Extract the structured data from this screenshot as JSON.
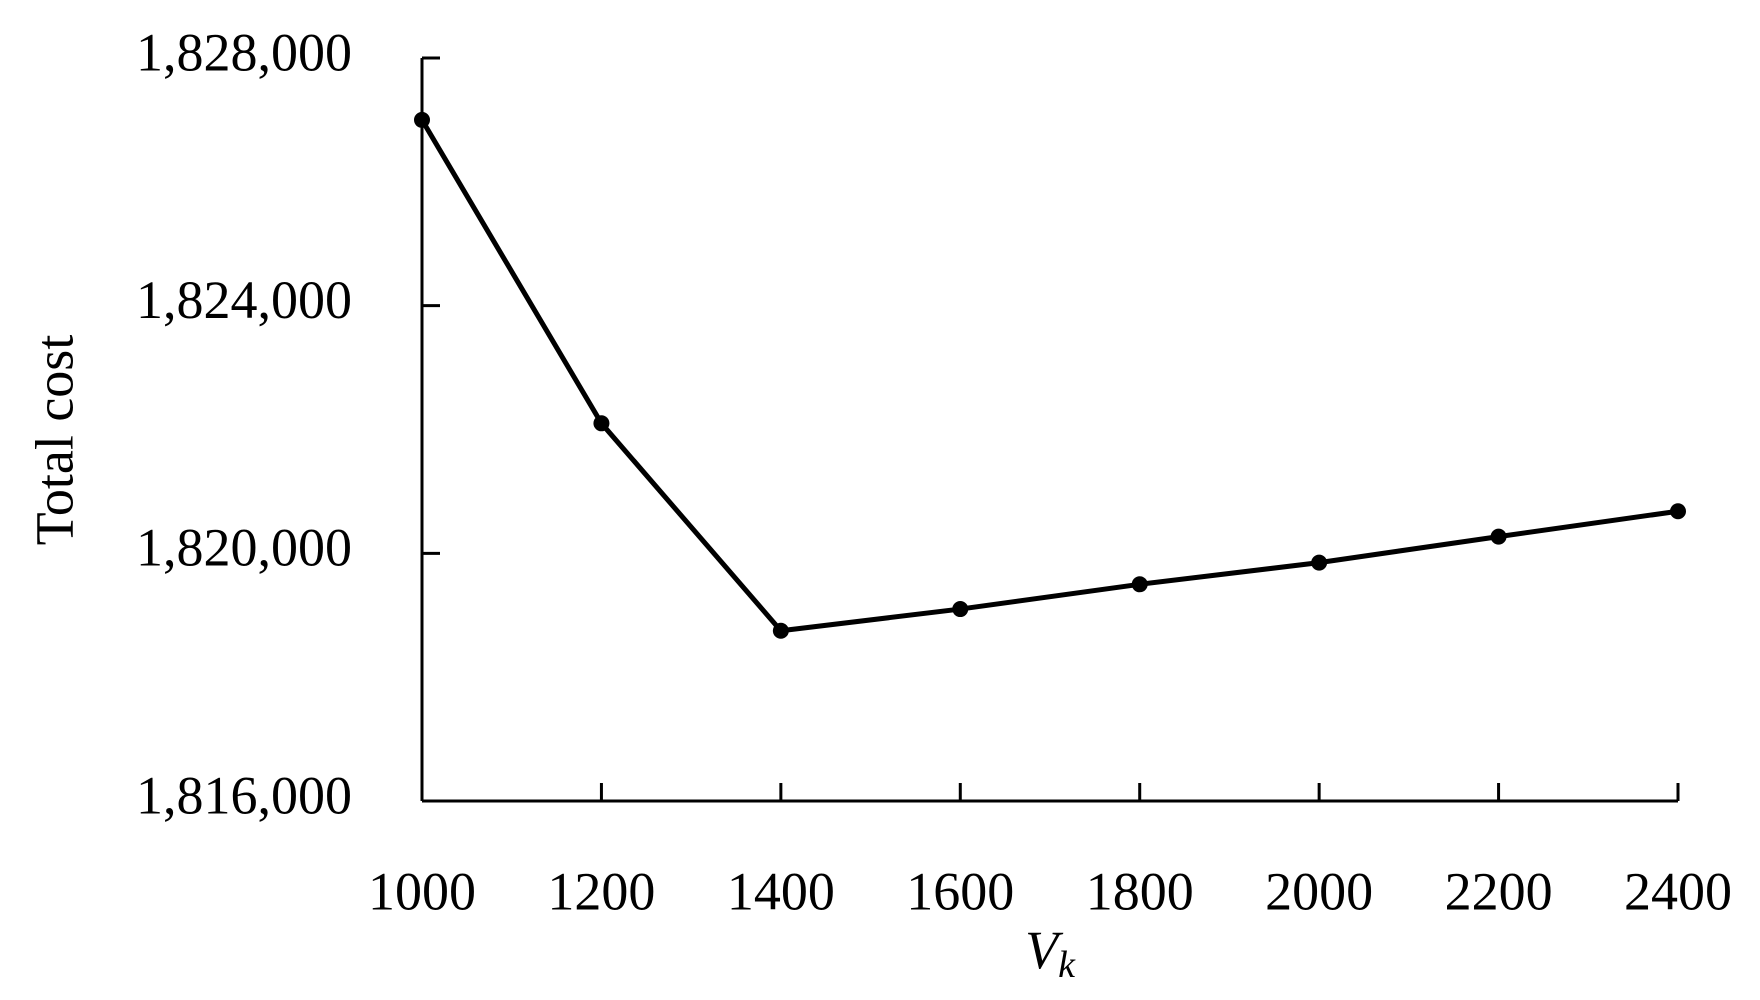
{
  "chart_data": {
    "type": "line",
    "xlabel": "V",
    "xlabel_subscript": "k",
    "ylabel": "Total cost",
    "x": [
      1000,
      1200,
      1400,
      1600,
      1800,
      2000,
      2200,
      2400
    ],
    "values": [
      1827000,
      1822100,
      1818750,
      1819100,
      1819500,
      1819850,
      1820270,
      1820680
    ],
    "color": "#000000",
    "xlim": [
      1000,
      2400
    ],
    "xticks": [
      1000,
      1200,
      1400,
      1600,
      1800,
      2000,
      2200,
      2400
    ],
    "ylim": [
      1816000,
      1828000
    ],
    "yticks": [
      {
        "value": 1816000,
        "label": "1,816,000"
      },
      {
        "value": 1820000,
        "label": "1,820,000"
      },
      {
        "value": 1824000,
        "label": "1,824,000"
      },
      {
        "value": 1828000,
        "label": "1,828,000"
      }
    ],
    "grid": false,
    "markers": true
  }
}
